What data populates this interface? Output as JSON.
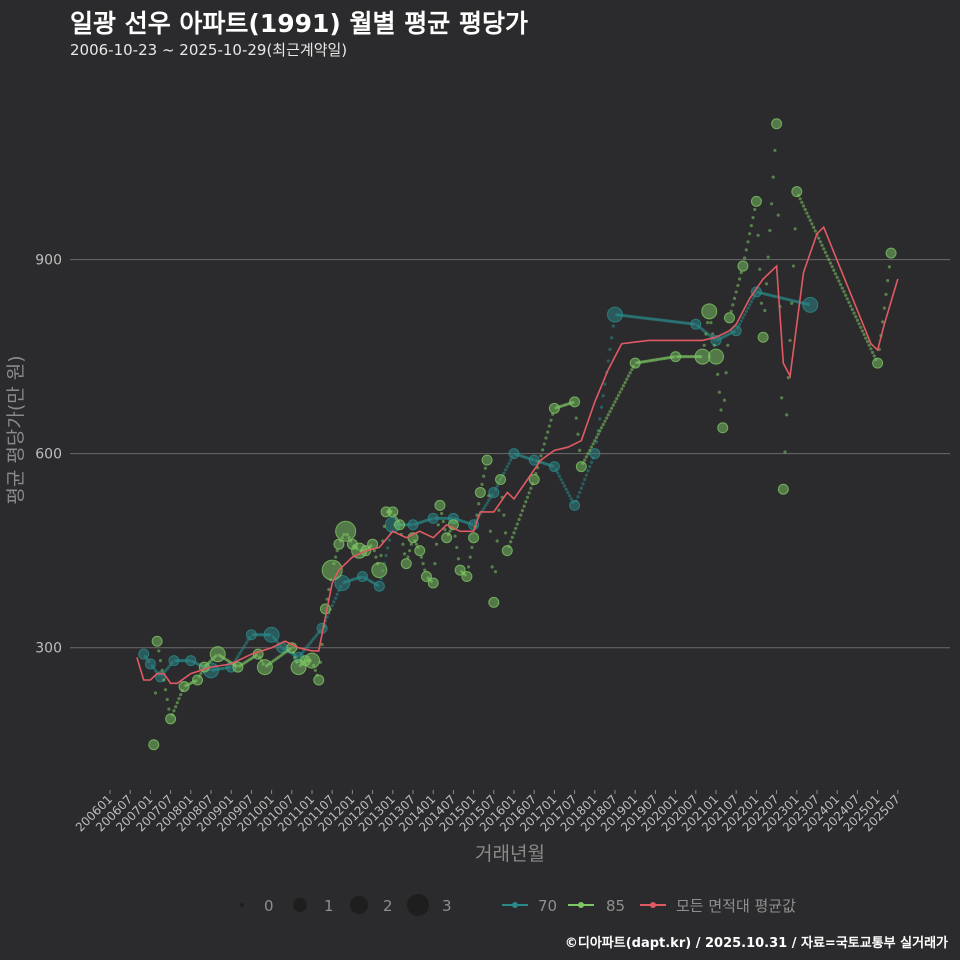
{
  "title": "일광 선우 아파트(1991) 월별 평균 평당가",
  "subtitle": "2006-10-23 ~ 2025-10-29(최근계약일)",
  "caption": "©디아파트(dapt.kr) / 2025.10.31 / 자료=국토교통부 실거래가",
  "colors": {
    "s70": "#2a8a8a",
    "s85": "#7ec764",
    "avg": "#e05a64",
    "grid": "#6a6a6a",
    "bg": "#2b2b2d"
  },
  "chart_data": {
    "type": "scatter",
    "title": "일광 선우 아파트(1991) 월별 평균 평당가",
    "xlabel": "거래년월",
    "ylabel": "평균 평당가(만 원)",
    "ylim": [
      80,
      1190
    ],
    "yticks": [
      300,
      600,
      900
    ],
    "xticks": [
      "200601",
      "200607",
      "200701",
      "200707",
      "200801",
      "200807",
      "200901",
      "200907",
      "201001",
      "201007",
      "201101",
      "201107",
      "201201",
      "201207",
      "201301",
      "201307",
      "201401",
      "201407",
      "201501",
      "201507",
      "201601",
      "201607",
      "201701",
      "201707",
      "201801",
      "201807",
      "201901",
      "201907",
      "202001",
      "202007",
      "202101",
      "202107",
      "202201",
      "202207",
      "202301",
      "202307",
      "202401",
      "202407",
      "202501",
      "202507"
    ],
    "size_legend": {
      "values": [
        "0",
        "1",
        "2",
        "3"
      ]
    },
    "series": [
      {
        "name": "70",
        "color": "#2a8a8a",
        "points": [
          [
            10,
            290,
            1
          ],
          [
            12,
            275,
            1
          ],
          [
            15,
            255,
            1
          ],
          [
            19,
            280,
            1
          ],
          [
            24,
            280,
            1
          ],
          [
            30,
            265,
            2
          ],
          [
            36,
            270,
            1
          ],
          [
            42,
            320,
            1
          ],
          [
            48,
            320,
            2
          ],
          [
            51,
            300,
            1
          ],
          [
            56,
            285,
            1
          ],
          [
            63,
            330,
            1
          ],
          [
            69,
            400,
            2
          ],
          [
            75,
            410,
            1
          ],
          [
            80,
            395,
            1
          ],
          [
            84,
            490,
            2
          ],
          [
            90,
            490,
            1
          ],
          [
            96,
            500,
            1
          ],
          [
            102,
            500,
            1
          ],
          [
            108,
            490,
            1
          ],
          [
            114,
            540,
            1
          ],
          [
            120,
            600,
            1
          ],
          [
            126,
            590,
            1
          ],
          [
            132,
            580,
            1
          ],
          [
            138,
            520,
            1
          ],
          [
            144,
            600,
            1
          ],
          [
            150,
            815,
            2
          ],
          [
            174,
            800,
            1
          ],
          [
            180,
            775,
            1
          ],
          [
            186,
            790,
            1
          ],
          [
            192,
            850,
            1
          ],
          [
            208,
            830,
            2
          ]
        ]
      },
      {
        "name": "85",
        "color": "#7ec764",
        "points": [
          [
            13,
            150,
            1
          ],
          [
            14,
            310,
            1
          ],
          [
            18,
            190,
            1
          ],
          [
            22,
            240,
            1
          ],
          [
            26,
            250,
            1
          ],
          [
            28,
            270,
            1
          ],
          [
            32,
            290,
            2
          ],
          [
            38,
            270,
            1
          ],
          [
            44,
            290,
            1
          ],
          [
            46,
            270,
            2
          ],
          [
            54,
            300,
            1
          ],
          [
            56,
            270,
            2
          ],
          [
            58,
            280,
            1
          ],
          [
            60,
            280,
            2
          ],
          [
            62,
            250,
            1
          ],
          [
            64,
            360,
            1
          ],
          [
            66,
            420,
            3
          ],
          [
            68,
            460,
            1
          ],
          [
            70,
            480,
            3
          ],
          [
            72,
            460,
            1
          ],
          [
            74,
            450,
            2
          ],
          [
            76,
            450,
            1
          ],
          [
            78,
            460,
            1
          ],
          [
            80,
            420,
            2
          ],
          [
            82,
            510,
            1
          ],
          [
            84,
            510,
            1
          ],
          [
            86,
            490,
            1
          ],
          [
            88,
            430,
            1
          ],
          [
            90,
            470,
            1
          ],
          [
            92,
            450,
            1
          ],
          [
            94,
            410,
            1
          ],
          [
            96,
            400,
            1
          ],
          [
            98,
            520,
            1
          ],
          [
            100,
            470,
            1
          ],
          [
            102,
            490,
            1
          ],
          [
            104,
            420,
            1
          ],
          [
            106,
            410,
            1
          ],
          [
            108,
            470,
            1
          ],
          [
            110,
            540,
            1
          ],
          [
            112,
            590,
            1
          ],
          [
            114,
            370,
            1
          ],
          [
            116,
            560,
            1
          ],
          [
            118,
            450,
            1
          ],
          [
            126,
            560,
            1
          ],
          [
            132,
            670,
            1
          ],
          [
            138,
            680,
            1
          ],
          [
            140,
            580,
            1
          ],
          [
            156,
            740,
            1
          ],
          [
            168,
            750,
            1
          ],
          [
            176,
            750,
            2
          ],
          [
            178,
            820,
            2
          ],
          [
            180,
            750,
            2
          ],
          [
            182,
            640,
            1
          ],
          [
            184,
            810,
            1
          ],
          [
            188,
            890,
            1
          ],
          [
            192,
            990,
            1
          ],
          [
            194,
            780,
            1
          ],
          [
            198,
            1110,
            1
          ],
          [
            200,
            545,
            1
          ],
          [
            204,
            1005,
            1
          ],
          [
            228,
            740,
            1
          ],
          [
            232,
            910,
            1
          ]
        ]
      },
      {
        "name": "모든 면적대 평균값",
        "color": "#e05a64",
        "points": [
          [
            8,
            285
          ],
          [
            10,
            250
          ],
          [
            12,
            250
          ],
          [
            14,
            260
          ],
          [
            16,
            260
          ],
          [
            18,
            245
          ],
          [
            20,
            245
          ],
          [
            24,
            260
          ],
          [
            30,
            270
          ],
          [
            36,
            275
          ],
          [
            42,
            290
          ],
          [
            48,
            300
          ],
          [
            52,
            310
          ],
          [
            56,
            300
          ],
          [
            60,
            295
          ],
          [
            62,
            295
          ],
          [
            66,
            400
          ],
          [
            68,
            420
          ],
          [
            72,
            440
          ],
          [
            76,
            450
          ],
          [
            80,
            455
          ],
          [
            84,
            480
          ],
          [
            88,
            470
          ],
          [
            92,
            480
          ],
          [
            96,
            470
          ],
          [
            100,
            490
          ],
          [
            104,
            480
          ],
          [
            108,
            480
          ],
          [
            110,
            510
          ],
          [
            114,
            510
          ],
          [
            118,
            540
          ],
          [
            120,
            530
          ],
          [
            124,
            560
          ],
          [
            128,
            590
          ],
          [
            132,
            605
          ],
          [
            136,
            610
          ],
          [
            140,
            620
          ],
          [
            144,
            680
          ],
          [
            148,
            730
          ],
          [
            152,
            770
          ],
          [
            160,
            775
          ],
          [
            176,
            775
          ],
          [
            180,
            780
          ],
          [
            184,
            790
          ],
          [
            186,
            800
          ],
          [
            190,
            840
          ],
          [
            194,
            870
          ],
          [
            196,
            880
          ],
          [
            198,
            890
          ],
          [
            200,
            740
          ],
          [
            202,
            720
          ],
          [
            206,
            880
          ],
          [
            210,
            940
          ],
          [
            212,
            950
          ],
          [
            226,
            770
          ],
          [
            228,
            760
          ],
          [
            230,
            800
          ],
          [
            234,
            870
          ]
        ]
      }
    ]
  },
  "legend": {
    "size_values": [
      "0",
      "1",
      "2",
      "3"
    ],
    "s70": "70",
    "s85": "85",
    "avg": "모든 면적대 평균값"
  }
}
